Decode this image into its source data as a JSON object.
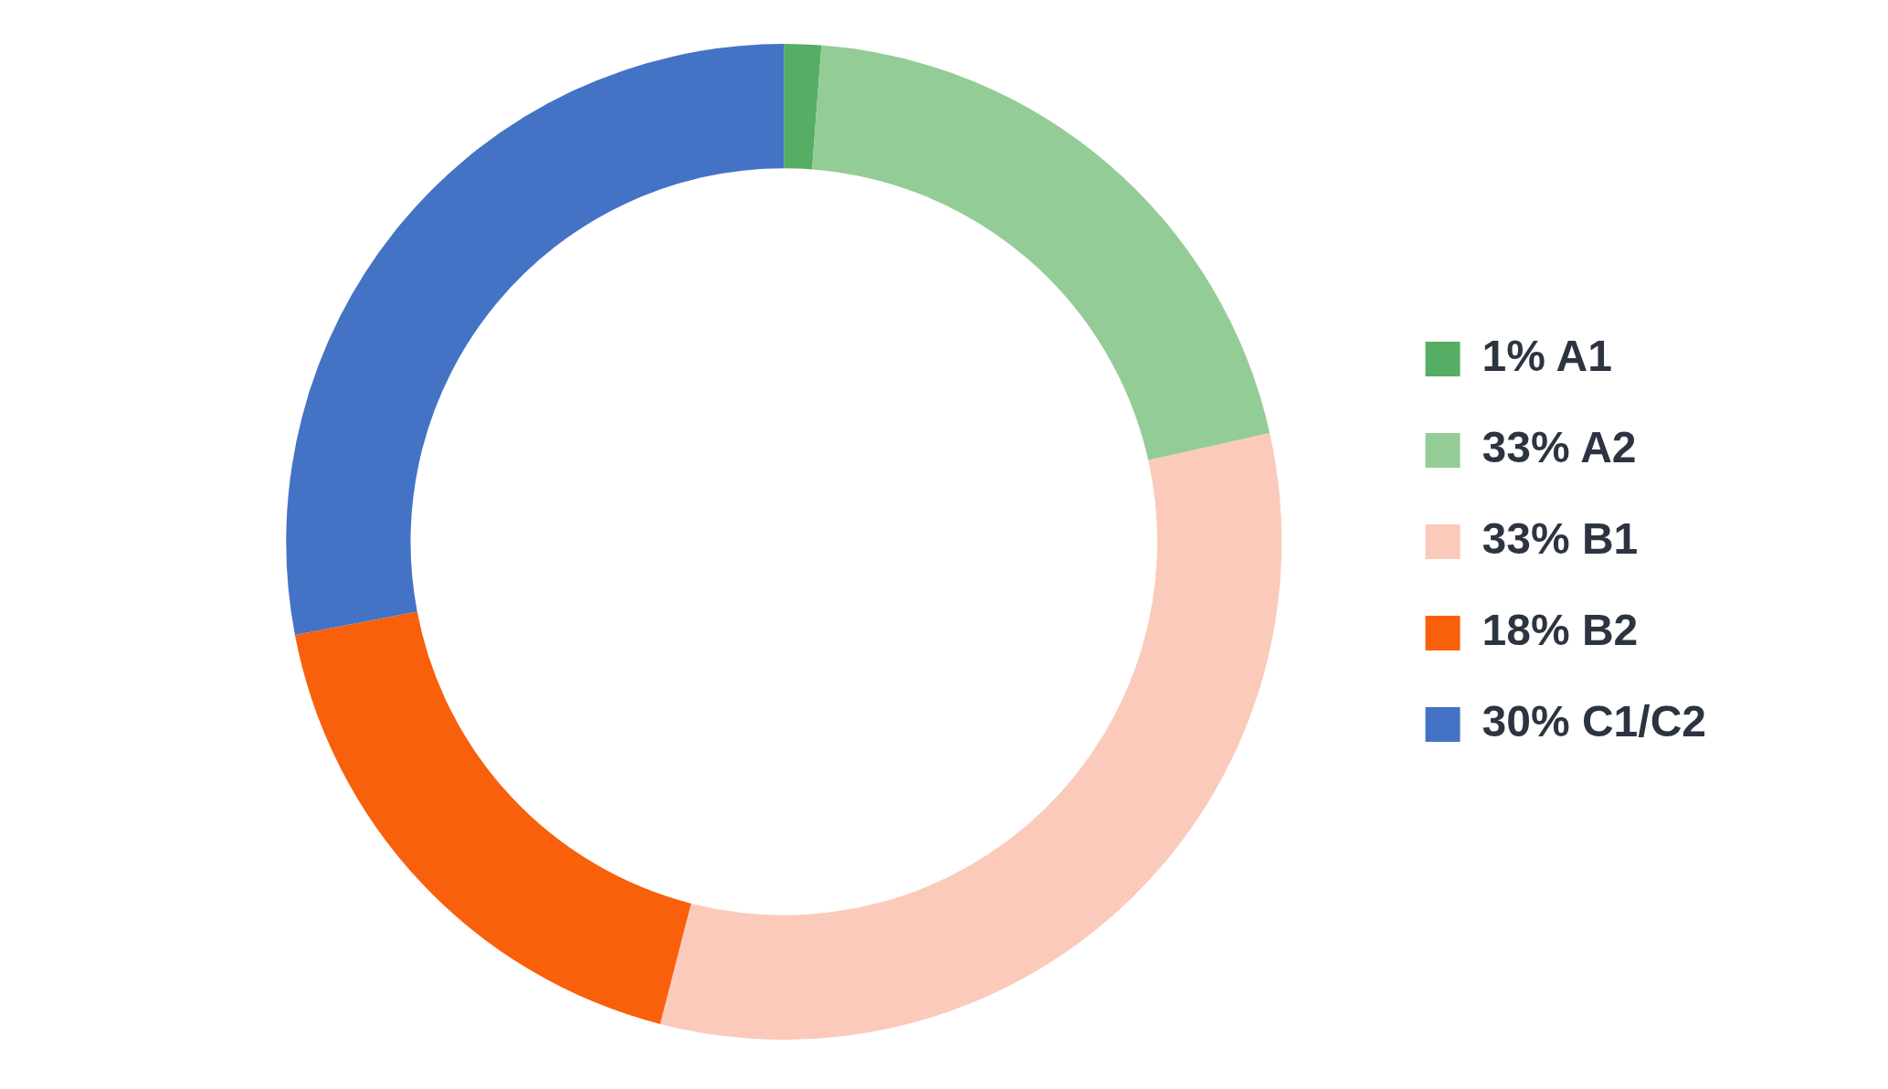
{
  "chart_data": {
    "type": "donut",
    "categories": [
      "1% A1",
      "33% A2",
      "33% B1",
      "18% B2",
      "30% C1/C2"
    ],
    "values": [
      1.2,
      20.3,
      32.5,
      18.0,
      28.0
    ],
    "colors": [
      "#55ae63",
      "#93cc97",
      "#fbcabb",
      "#f9600b",
      "#4473c5"
    ],
    "legend": "right"
  }
}
